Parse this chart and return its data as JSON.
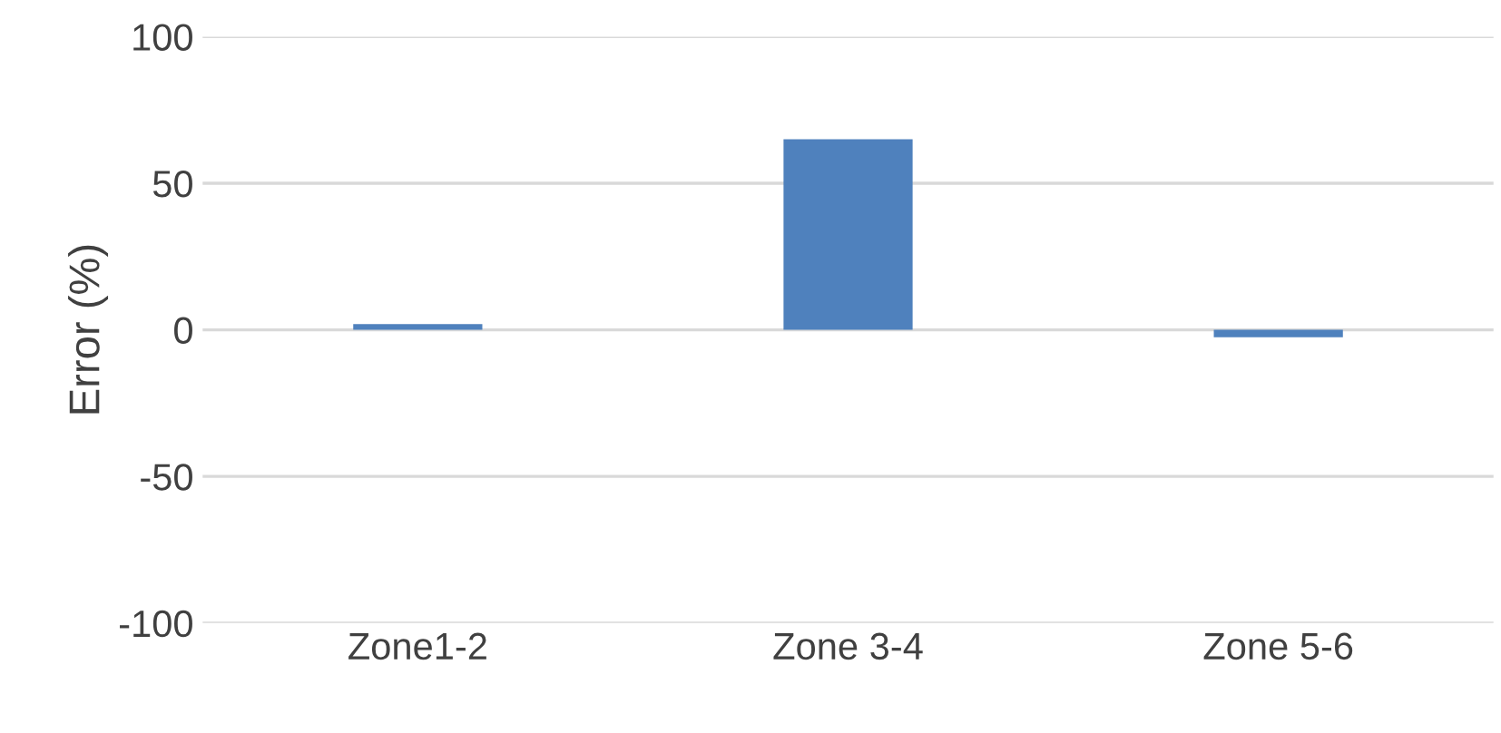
{
  "chart_data": {
    "type": "bar",
    "ylabel": "Error (%)",
    "categories": [
      "Zone1-2",
      "Zone 3-4",
      "Zone 5-6"
    ],
    "values": [
      2,
      65,
      -2.5
    ],
    "color": "#4f81bd",
    "ylim": [
      -100,
      100
    ],
    "yticks": [
      -100,
      -50,
      0,
      50,
      100
    ],
    "grid": "y"
  }
}
